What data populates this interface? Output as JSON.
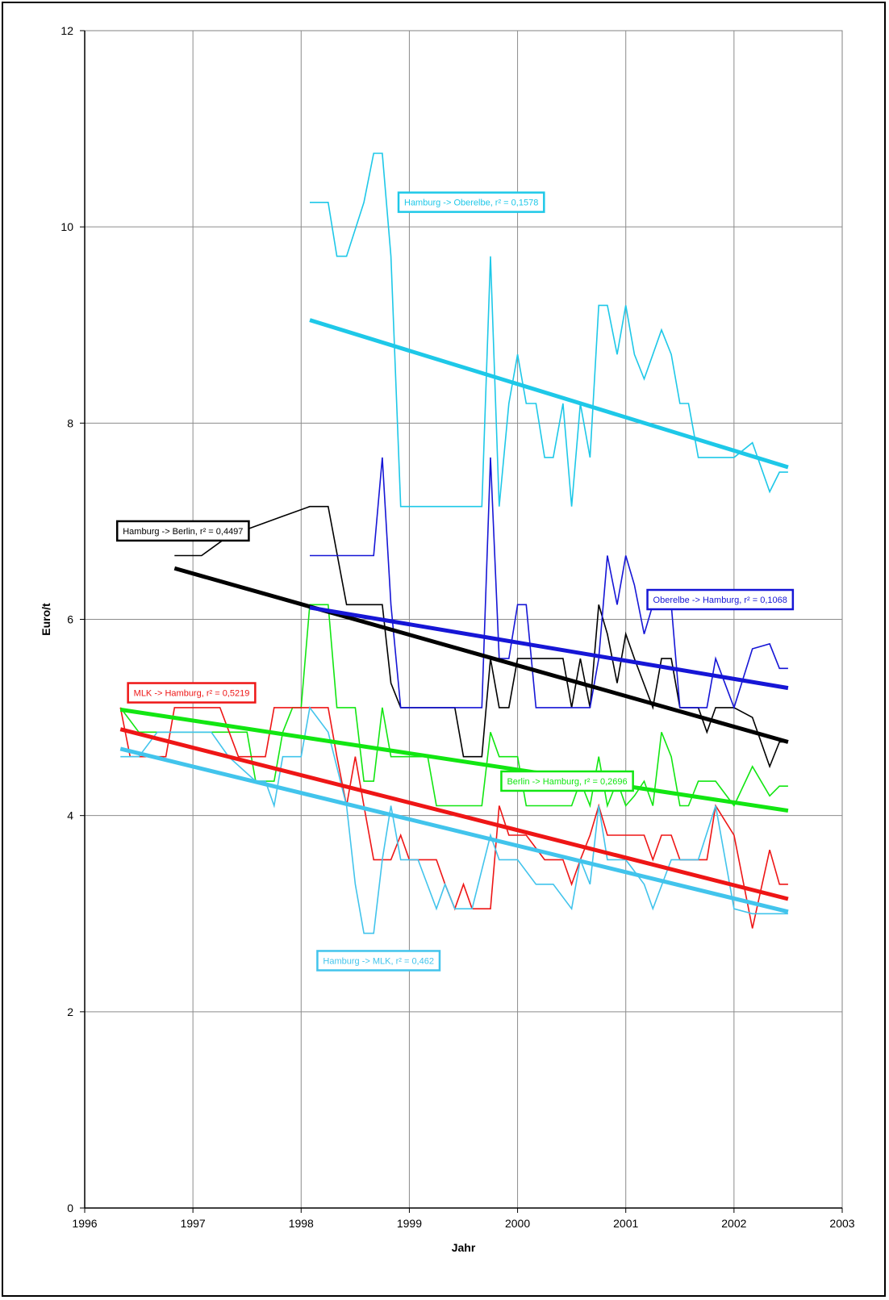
{
  "chart_data": {
    "type": "line",
    "title": "",
    "xlabel": "Jahr",
    "ylabel": "Euro/t",
    "xlim": [
      1996,
      2003
    ],
    "ylim": [
      0,
      12
    ],
    "x_ticks": [
      "1996",
      "1997",
      "1998",
      "1999",
      "2000",
      "2001",
      "2002",
      "2003"
    ],
    "y_ticks": [
      "0",
      "2",
      "4",
      "6",
      "8",
      "10",
      "12"
    ],
    "grid": true,
    "legend": "none",
    "series": [
      {
        "id": "hamburg_oberelbe",
        "color": "#1ec8e8",
        "label": "Hamburg -> Oberelbe, r² = 0,1578",
        "label_anchor": [
          1998.9,
          10.35
        ],
        "trend": [
          [
            1998.08,
            9.05
          ],
          [
            2002.5,
            7.55
          ]
        ],
        "points": [
          [
            1998.08,
            10.25
          ],
          [
            1998.25,
            10.25
          ],
          [
            1998.33,
            9.7
          ],
          [
            1998.42,
            9.7
          ],
          [
            1998.58,
            10.25
          ],
          [
            1998.67,
            10.75
          ],
          [
            1998.75,
            10.75
          ],
          [
            1998.83,
            9.7
          ],
          [
            1998.92,
            7.15
          ],
          [
            1999.08,
            7.15
          ],
          [
            1999.25,
            7.15
          ],
          [
            1999.5,
            7.15
          ],
          [
            1999.67,
            7.15
          ],
          [
            1999.75,
            9.7
          ],
          [
            1999.83,
            7.15
          ],
          [
            1999.92,
            8.2
          ],
          [
            2000.0,
            8.7
          ],
          [
            2000.08,
            8.2
          ],
          [
            2000.17,
            8.2
          ],
          [
            2000.25,
            7.65
          ],
          [
            2000.33,
            7.65
          ],
          [
            2000.42,
            8.2
          ],
          [
            2000.5,
            7.15
          ],
          [
            2000.58,
            8.2
          ],
          [
            2000.67,
            7.65
          ],
          [
            2000.75,
            9.2
          ],
          [
            2000.83,
            9.2
          ],
          [
            2000.92,
            8.7
          ],
          [
            2001.0,
            9.2
          ],
          [
            2001.08,
            8.7
          ],
          [
            2001.17,
            8.45
          ],
          [
            2001.25,
            8.7
          ],
          [
            2001.33,
            8.95
          ],
          [
            2001.42,
            8.7
          ],
          [
            2001.5,
            8.2
          ],
          [
            2001.58,
            8.2
          ],
          [
            2001.67,
            7.65
          ],
          [
            2001.83,
            7.65
          ],
          [
            2002.0,
            7.65
          ],
          [
            2002.17,
            7.8
          ],
          [
            2002.33,
            7.3
          ],
          [
            2002.42,
            7.5
          ],
          [
            2002.5,
            7.5
          ]
        ]
      },
      {
        "id": "hamburg_berlin",
        "color": "#000000",
        "label": "Hamburg -> Berlin, r² = 0,4497",
        "label_anchor": [
          1996.3,
          7.0
        ],
        "trend": [
          [
            1996.83,
            6.52
          ],
          [
            2002.5,
            4.75
          ]
        ],
        "points": [
          [
            1996.83,
            6.65
          ],
          [
            1997.08,
            6.65
          ],
          [
            1997.33,
            6.85
          ],
          [
            1997.58,
            6.95
          ],
          [
            1997.83,
            7.05
          ],
          [
            1998.08,
            7.15
          ],
          [
            1998.25,
            7.15
          ],
          [
            1998.42,
            6.15
          ],
          [
            1998.58,
            6.15
          ],
          [
            1998.75,
            6.15
          ],
          [
            1998.83,
            5.35
          ],
          [
            1998.92,
            5.1
          ],
          [
            1999.08,
            5.1
          ],
          [
            1999.42,
            5.1
          ],
          [
            1999.5,
            4.6
          ],
          [
            1999.67,
            4.6
          ],
          [
            1999.75,
            5.6
          ],
          [
            1999.83,
            5.1
          ],
          [
            1999.92,
            5.1
          ],
          [
            2000.0,
            5.6
          ],
          [
            2000.25,
            5.6
          ],
          [
            2000.42,
            5.6
          ],
          [
            2000.5,
            5.1
          ],
          [
            2000.58,
            5.6
          ],
          [
            2000.67,
            5.1
          ],
          [
            2000.75,
            6.15
          ],
          [
            2000.83,
            5.85
          ],
          [
            2000.92,
            5.35
          ],
          [
            2001.0,
            5.85
          ],
          [
            2001.08,
            5.6
          ],
          [
            2001.25,
            5.1
          ],
          [
            2001.33,
            5.6
          ],
          [
            2001.42,
            5.6
          ],
          [
            2001.5,
            5.1
          ],
          [
            2001.58,
            5.1
          ],
          [
            2001.67,
            5.1
          ],
          [
            2001.75,
            4.85
          ],
          [
            2001.83,
            5.1
          ],
          [
            2002.0,
            5.1
          ],
          [
            2002.17,
            5.0
          ],
          [
            2002.33,
            4.5
          ],
          [
            2002.42,
            4.75
          ],
          [
            2002.5,
            4.75
          ]
        ]
      },
      {
        "id": "oberelbe_hamburg",
        "color": "#1616d6",
        "label": "Oberelbe -> Hamburg, r² = 0,1068",
        "label_anchor": [
          2001.2,
          6.3
        ],
        "trend": [
          [
            1998.08,
            6.12
          ],
          [
            2002.5,
            5.3
          ]
        ],
        "points": [
          [
            1998.08,
            6.65
          ],
          [
            1998.67,
            6.65
          ],
          [
            1998.75,
            7.65
          ],
          [
            1998.83,
            6.15
          ],
          [
            1998.92,
            5.1
          ],
          [
            1999.08,
            5.1
          ],
          [
            1999.67,
            5.1
          ],
          [
            1999.75,
            7.65
          ],
          [
            1999.83,
            5.6
          ],
          [
            1999.92,
            5.6
          ],
          [
            2000.0,
            6.15
          ],
          [
            2000.08,
            6.15
          ],
          [
            2000.17,
            5.1
          ],
          [
            2000.67,
            5.1
          ],
          [
            2000.75,
            5.6
          ],
          [
            2000.83,
            6.65
          ],
          [
            2000.92,
            6.15
          ],
          [
            2001.0,
            6.65
          ],
          [
            2001.08,
            6.35
          ],
          [
            2001.17,
            5.85
          ],
          [
            2001.25,
            6.15
          ],
          [
            2001.42,
            6.15
          ],
          [
            2001.5,
            5.1
          ],
          [
            2001.67,
            5.1
          ],
          [
            2001.75,
            5.1
          ],
          [
            2001.83,
            5.6
          ],
          [
            2002.0,
            5.1
          ],
          [
            2002.17,
            5.7
          ],
          [
            2002.33,
            5.75
          ],
          [
            2002.42,
            5.5
          ],
          [
            2002.5,
            5.5
          ]
        ]
      },
      {
        "id": "berlin_hamburg",
        "color": "#12e612",
        "label": "Berlin -> Hamburg, r² = 0,2696",
        "label_anchor": [
          1999.85,
          4.45
        ],
        "trend": [
          [
            1996.33,
            5.08
          ],
          [
            2002.5,
            4.05
          ]
        ],
        "points": [
          [
            1996.33,
            5.1
          ],
          [
            1996.5,
            4.85
          ],
          [
            1996.67,
            4.85
          ],
          [
            1997.0,
            4.85
          ],
          [
            1997.5,
            4.85
          ],
          [
            1997.58,
            4.35
          ],
          [
            1997.75,
            4.35
          ],
          [
            1997.83,
            4.85
          ],
          [
            1997.92,
            5.1
          ],
          [
            1998.0,
            5.1
          ],
          [
            1998.08,
            6.15
          ],
          [
            1998.25,
            6.15
          ],
          [
            1998.33,
            5.1
          ],
          [
            1998.5,
            5.1
          ],
          [
            1998.58,
            4.35
          ],
          [
            1998.67,
            4.35
          ],
          [
            1998.75,
            5.1
          ],
          [
            1998.83,
            4.6
          ],
          [
            1998.92,
            4.6
          ],
          [
            1999.17,
            4.6
          ],
          [
            1999.25,
            4.1
          ],
          [
            1999.5,
            4.1
          ],
          [
            1999.67,
            4.1
          ],
          [
            1999.75,
            4.85
          ],
          [
            1999.83,
            4.6
          ],
          [
            1999.92,
            4.6
          ],
          [
            2000.0,
            4.6
          ],
          [
            2000.08,
            4.1
          ],
          [
            2000.25,
            4.1
          ],
          [
            2000.5,
            4.1
          ],
          [
            2000.58,
            4.35
          ],
          [
            2000.67,
            4.1
          ],
          [
            2000.75,
            4.6
          ],
          [
            2000.83,
            4.1
          ],
          [
            2000.92,
            4.35
          ],
          [
            2001.0,
            4.1
          ],
          [
            2001.08,
            4.2
          ],
          [
            2001.17,
            4.35
          ],
          [
            2001.25,
            4.1
          ],
          [
            2001.33,
            4.85
          ],
          [
            2001.42,
            4.6
          ],
          [
            2001.5,
            4.1
          ],
          [
            2001.58,
            4.1
          ],
          [
            2001.67,
            4.35
          ],
          [
            2001.83,
            4.35
          ],
          [
            2002.0,
            4.1
          ],
          [
            2002.17,
            4.5
          ],
          [
            2002.33,
            4.2
          ],
          [
            2002.42,
            4.3
          ],
          [
            2002.5,
            4.3
          ]
        ]
      },
      {
        "id": "mlk_hamburg",
        "color": "#ee1616",
        "label": "MLK -> Hamburg, r² = 0,5219",
        "label_anchor": [
          1996.4,
          5.35
        ],
        "trend": [
          [
            1996.33,
            4.88
          ],
          [
            2002.5,
            3.15
          ]
        ],
        "points": [
          [
            1996.33,
            5.1
          ],
          [
            1996.42,
            4.6
          ],
          [
            1996.75,
            4.6
          ],
          [
            1996.83,
            5.1
          ],
          [
            1997.25,
            5.1
          ],
          [
            1997.42,
            4.6
          ],
          [
            1997.67,
            4.6
          ],
          [
            1997.75,
            5.1
          ],
          [
            1998.0,
            5.1
          ],
          [
            1998.25,
            5.1
          ],
          [
            1998.33,
            4.6
          ],
          [
            1998.42,
            4.1
          ],
          [
            1998.5,
            4.6
          ],
          [
            1998.58,
            4.1
          ],
          [
            1998.67,
            3.55
          ],
          [
            1998.83,
            3.55
          ],
          [
            1998.92,
            3.8
          ],
          [
            1999.0,
            3.55
          ],
          [
            1999.25,
            3.55
          ],
          [
            1999.33,
            3.3
          ],
          [
            1999.42,
            3.05
          ],
          [
            1999.5,
            3.3
          ],
          [
            1999.58,
            3.05
          ],
          [
            1999.75,
            3.05
          ],
          [
            1999.83,
            4.1
          ],
          [
            1999.92,
            3.8
          ],
          [
            2000.08,
            3.8
          ],
          [
            2000.25,
            3.55
          ],
          [
            2000.42,
            3.55
          ],
          [
            2000.5,
            3.3
          ],
          [
            2000.58,
            3.55
          ],
          [
            2000.67,
            3.8
          ],
          [
            2000.75,
            4.1
          ],
          [
            2000.83,
            3.8
          ],
          [
            2001.0,
            3.8
          ],
          [
            2001.17,
            3.8
          ],
          [
            2001.25,
            3.55
          ],
          [
            2001.33,
            3.8
          ],
          [
            2001.42,
            3.8
          ],
          [
            2001.5,
            3.55
          ],
          [
            2001.75,
            3.55
          ],
          [
            2001.83,
            4.1
          ],
          [
            2002.0,
            3.8
          ],
          [
            2002.17,
            2.85
          ],
          [
            2002.33,
            3.65
          ],
          [
            2002.42,
            3.3
          ],
          [
            2002.5,
            3.3
          ]
        ]
      },
      {
        "id": "hamburg_mlk",
        "color": "#42c4ec",
        "label": "Hamburg -> MLK, r² = 0,462",
        "label_anchor": [
          1998.15,
          2.62
        ],
        "trend": [
          [
            1996.33,
            4.68
          ],
          [
            2002.5,
            3.02
          ]
        ],
        "points": [
          [
            1996.33,
            4.6
          ],
          [
            1996.5,
            4.6
          ],
          [
            1996.67,
            4.85
          ],
          [
            1997.0,
            4.85
          ],
          [
            1997.17,
            4.85
          ],
          [
            1997.33,
            4.6
          ],
          [
            1997.58,
            4.35
          ],
          [
            1997.67,
            4.35
          ],
          [
            1997.75,
            4.1
          ],
          [
            1997.83,
            4.6
          ],
          [
            1998.0,
            4.6
          ],
          [
            1998.08,
            5.1
          ],
          [
            1998.25,
            4.85
          ],
          [
            1998.42,
            4.1
          ],
          [
            1998.5,
            3.3
          ],
          [
            1998.58,
            2.8
          ],
          [
            1998.67,
            2.8
          ],
          [
            1998.75,
            3.55
          ],
          [
            1998.83,
            4.1
          ],
          [
            1998.92,
            3.55
          ],
          [
            1999.08,
            3.55
          ],
          [
            1999.25,
            3.05
          ],
          [
            1999.33,
            3.3
          ],
          [
            1999.42,
            3.05
          ],
          [
            1999.58,
            3.05
          ],
          [
            1999.75,
            3.8
          ],
          [
            1999.83,
            3.55
          ],
          [
            2000.0,
            3.55
          ],
          [
            2000.17,
            3.3
          ],
          [
            2000.33,
            3.3
          ],
          [
            2000.5,
            3.05
          ],
          [
            2000.58,
            3.55
          ],
          [
            2000.67,
            3.3
          ],
          [
            2000.75,
            4.1
          ],
          [
            2000.83,
            3.55
          ],
          [
            2001.0,
            3.55
          ],
          [
            2001.17,
            3.3
          ],
          [
            2001.25,
            3.05
          ],
          [
            2001.42,
            3.55
          ],
          [
            2001.58,
            3.55
          ],
          [
            2001.67,
            3.55
          ],
          [
            2001.83,
            4.1
          ],
          [
            2002.0,
            3.05
          ],
          [
            2002.17,
            3.0
          ],
          [
            2002.33,
            3.0
          ],
          [
            2002.5,
            3.0
          ]
        ]
      }
    ]
  }
}
